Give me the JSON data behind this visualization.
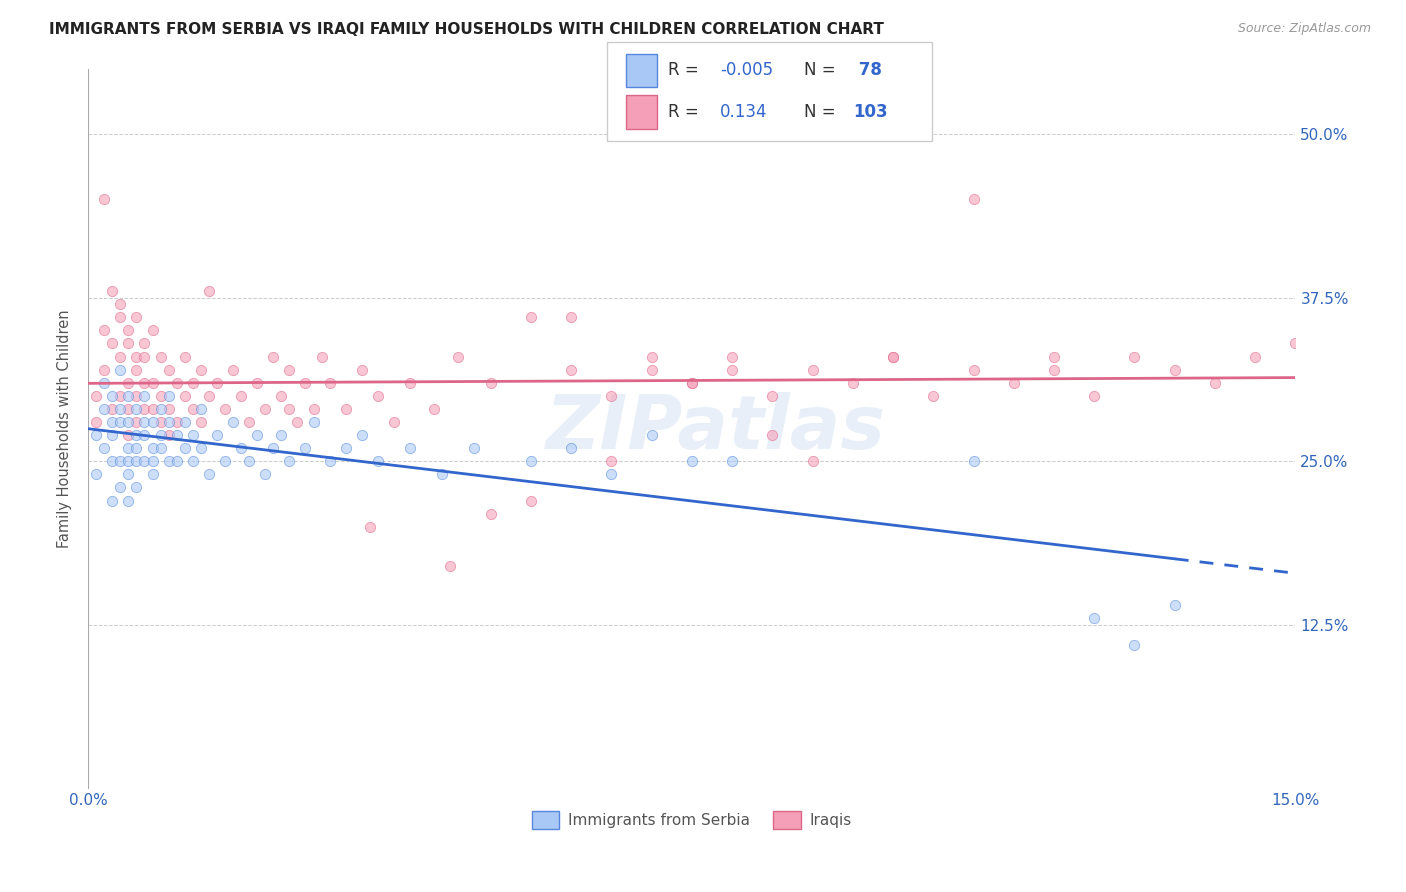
{
  "title": "IMMIGRANTS FROM SERBIA VS IRAQI FAMILY HOUSEHOLDS WITH CHILDREN CORRELATION CHART",
  "source": "Source: ZipAtlas.com",
  "ylabel": "Family Households with Children",
  "x_min": 0.0,
  "x_max": 0.15,
  "y_min": 0.0,
  "y_max": 0.55,
  "x_ticks": [
    0.0,
    0.03,
    0.06,
    0.09,
    0.12,
    0.15
  ],
  "x_tick_labels": [
    "0.0%",
    "",
    "",
    "",
    "",
    "15.0%"
  ],
  "y_ticks": [
    0.0,
    0.125,
    0.25,
    0.375,
    0.5
  ],
  "y_tick_labels_right": [
    "",
    "12.5%",
    "25.0%",
    "37.5%",
    "50.0%"
  ],
  "color_serbia": "#aac8f5",
  "color_serbia_edge": "#5588dd",
  "color_iraq": "#f5a0b8",
  "color_iraq_edge": "#dd6688",
  "color_serbia_line": "#3366cc",
  "color_iraq_line": "#dd6688",
  "serbia_R": -0.005,
  "iraq_R": 0.134,
  "serbia_N": 78,
  "iraq_N": 103,
  "watermark": "ZIPatlas",
  "dot_size": 55,
  "dot_alpha": 0.6,
  "serbia_line_solid_end": 0.07,
  "serbia_x_data": [
    0.001,
    0.001,
    0.002,
    0.002,
    0.002,
    0.003,
    0.003,
    0.003,
    0.003,
    0.003,
    0.004,
    0.004,
    0.004,
    0.004,
    0.004,
    0.005,
    0.005,
    0.005,
    0.005,
    0.005,
    0.005,
    0.006,
    0.006,
    0.006,
    0.006,
    0.006,
    0.007,
    0.007,
    0.007,
    0.007,
    0.008,
    0.008,
    0.008,
    0.008,
    0.009,
    0.009,
    0.009,
    0.01,
    0.01,
    0.01,
    0.011,
    0.011,
    0.012,
    0.012,
    0.013,
    0.013,
    0.014,
    0.014,
    0.015,
    0.016,
    0.017,
    0.018,
    0.019,
    0.02,
    0.021,
    0.022,
    0.023,
    0.024,
    0.025,
    0.027,
    0.028,
    0.03,
    0.032,
    0.034,
    0.036,
    0.04,
    0.044,
    0.048,
    0.055,
    0.06,
    0.065,
    0.07,
    0.075,
    0.08,
    0.11,
    0.125,
    0.13,
    0.135
  ],
  "serbia_y_data": [
    0.27,
    0.24,
    0.31,
    0.29,
    0.26,
    0.28,
    0.25,
    0.22,
    0.3,
    0.27,
    0.28,
    0.25,
    0.23,
    0.32,
    0.29,
    0.26,
    0.28,
    0.25,
    0.24,
    0.22,
    0.3,
    0.27,
    0.29,
    0.25,
    0.23,
    0.26,
    0.28,
    0.25,
    0.27,
    0.3,
    0.26,
    0.24,
    0.28,
    0.25,
    0.27,
    0.29,
    0.26,
    0.25,
    0.28,
    0.3,
    0.27,
    0.25,
    0.26,
    0.28,
    0.27,
    0.25,
    0.29,
    0.26,
    0.24,
    0.27,
    0.25,
    0.28,
    0.26,
    0.25,
    0.27,
    0.24,
    0.26,
    0.27,
    0.25,
    0.26,
    0.28,
    0.25,
    0.26,
    0.27,
    0.25,
    0.26,
    0.24,
    0.26,
    0.25,
    0.26,
    0.24,
    0.27,
    0.25,
    0.25,
    0.25,
    0.13,
    0.11,
    0.14
  ],
  "iraq_x_data": [
    0.001,
    0.001,
    0.002,
    0.002,
    0.002,
    0.003,
    0.003,
    0.003,
    0.004,
    0.004,
    0.004,
    0.004,
    0.005,
    0.005,
    0.005,
    0.005,
    0.005,
    0.006,
    0.006,
    0.006,
    0.006,
    0.006,
    0.007,
    0.007,
    0.007,
    0.007,
    0.008,
    0.008,
    0.008,
    0.009,
    0.009,
    0.009,
    0.01,
    0.01,
    0.01,
    0.011,
    0.011,
    0.012,
    0.012,
    0.013,
    0.013,
    0.014,
    0.014,
    0.015,
    0.016,
    0.017,
    0.018,
    0.019,
    0.02,
    0.021,
    0.022,
    0.023,
    0.024,
    0.025,
    0.026,
    0.027,
    0.028,
    0.029,
    0.03,
    0.032,
    0.034,
    0.036,
    0.038,
    0.04,
    0.043,
    0.046,
    0.05,
    0.055,
    0.06,
    0.065,
    0.07,
    0.075,
    0.08,
    0.085,
    0.09,
    0.095,
    0.1,
    0.105,
    0.11,
    0.115,
    0.12,
    0.125,
    0.13,
    0.135,
    0.14,
    0.145,
    0.15,
    0.05,
    0.06,
    0.07,
    0.08,
    0.09,
    0.1,
    0.11,
    0.12,
    0.015,
    0.025,
    0.035,
    0.045,
    0.055,
    0.065,
    0.075,
    0.085
  ],
  "iraq_y_data": [
    0.3,
    0.28,
    0.45,
    0.32,
    0.35,
    0.38,
    0.34,
    0.29,
    0.37,
    0.33,
    0.3,
    0.36,
    0.34,
    0.31,
    0.29,
    0.27,
    0.35,
    0.33,
    0.3,
    0.28,
    0.32,
    0.36,
    0.34,
    0.31,
    0.29,
    0.33,
    0.31,
    0.29,
    0.35,
    0.33,
    0.3,
    0.28,
    0.32,
    0.29,
    0.27,
    0.31,
    0.28,
    0.3,
    0.33,
    0.31,
    0.29,
    0.32,
    0.28,
    0.3,
    0.31,
    0.29,
    0.32,
    0.3,
    0.28,
    0.31,
    0.29,
    0.33,
    0.3,
    0.32,
    0.28,
    0.31,
    0.29,
    0.33,
    0.31,
    0.29,
    0.32,
    0.3,
    0.28,
    0.31,
    0.29,
    0.33,
    0.31,
    0.22,
    0.32,
    0.3,
    0.33,
    0.31,
    0.32,
    0.3,
    0.32,
    0.31,
    0.33,
    0.3,
    0.32,
    0.31,
    0.32,
    0.3,
    0.33,
    0.32,
    0.31,
    0.33,
    0.34,
    0.21,
    0.36,
    0.32,
    0.33,
    0.25,
    0.33,
    0.45,
    0.33,
    0.38,
    0.29,
    0.2,
    0.17,
    0.36,
    0.25,
    0.31,
    0.27
  ]
}
